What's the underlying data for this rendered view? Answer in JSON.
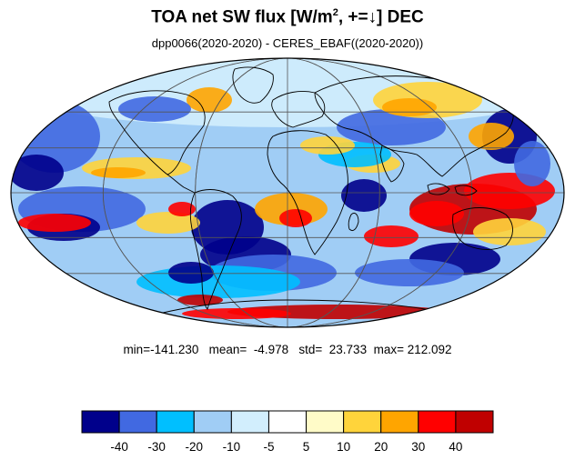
{
  "title": {
    "main": "TOA net SW flux [W/m",
    "sup": "2",
    "suffix": ", +=↓]  DEC"
  },
  "subtitle": "dpp0066(2020-2020) - CERES_EBAF((2020-2020))",
  "stats": {
    "min_label": "min=",
    "min": "-141.230",
    "mean_label": "mean=",
    "mean": "-4.978",
    "std_label": "std=",
    "std": "23.733",
    "max_label": "max=",
    "max": "212.092"
  },
  "colorbar": {
    "colors": [
      "#00008b",
      "#4169e1",
      "#00bfff",
      "#a0cdf5",
      "#d2eefd",
      "#ffffff",
      "#fffbc8",
      "#ffd43b",
      "#ffa500",
      "#ff0000",
      "#c00000"
    ],
    "labels": [
      "-40",
      "-30",
      "-20",
      "-10",
      "-5",
      "5",
      "10",
      "20",
      "30",
      "40"
    ]
  },
  "map": {
    "projection": "Mollweide",
    "colors": {
      "dark_blue": "#00008b",
      "blue": "#4169e1",
      "sky": "#00bfff",
      "light_blue": "#a0cdf5",
      "pale_blue": "#d2eefd",
      "white": "#ffffff",
      "pale_yellow": "#fffbc8",
      "yellow": "#ffd43b",
      "orange": "#ffa500",
      "red": "#ff0000",
      "dark_red": "#c00000"
    }
  }
}
